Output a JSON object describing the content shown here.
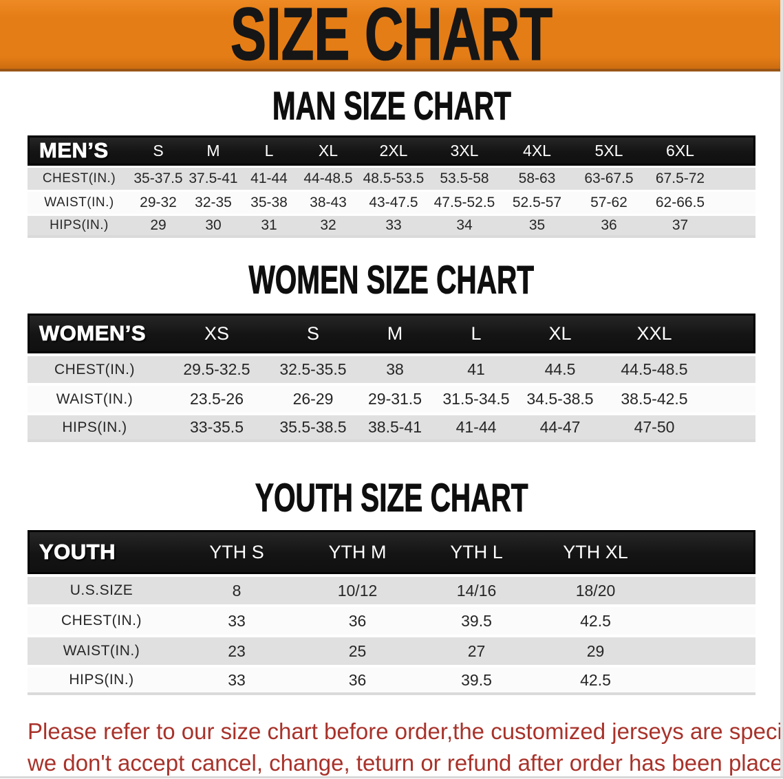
{
  "banner": {
    "title": "SIZE CHART"
  },
  "theme": {
    "banner_bg": "#E57D16",
    "banner_text": "#161616",
    "bar_bg": "#161616",
    "bar_text": "#FFFFFF",
    "row_gray": "#E0E0E0",
    "row_white": "#FBFBFB",
    "value_text": "#262626",
    "footer_red": "#A8322A"
  },
  "sections": {
    "men": {
      "heading": "MAN SIZE CHART",
      "group_label": "MEN’S",
      "sizes": [
        "S",
        "M",
        "L",
        "XL",
        "2XL",
        "3XL",
        "4XL",
        "5XL",
        "6XL"
      ],
      "rows": [
        {
          "label": "CHEST(IN.)",
          "values": [
            "35-37.5",
            "37.5-41",
            "41-44",
            "44-48.5",
            "48.5-53.5",
            "53.5-58",
            "58-63",
            "63-67.5",
            "67.5-72"
          ]
        },
        {
          "label": "WAIST(IN.)",
          "values": [
            "29-32",
            "32-35",
            "35-38",
            "38-43",
            "43-47.5",
            "47.5-52.5",
            "52.5-57",
            "57-62",
            "62-66.5"
          ]
        },
        {
          "label": "HIPS(IN.)",
          "values": [
            "29",
            "30",
            "31",
            "32",
            "33",
            "34",
            "35",
            "36",
            "37"
          ]
        }
      ]
    },
    "women": {
      "heading": "WOMEN SIZE CHART",
      "group_label": "WOMEN’S",
      "sizes": [
        "XS",
        "S",
        "M",
        "L",
        "XL",
        "XXL"
      ],
      "rows": [
        {
          "label": "CHEST(IN.)",
          "values": [
            "29.5-32.5",
            "32.5-35.5",
            "38",
            "41",
            "44.5",
            "44.5-48.5"
          ]
        },
        {
          "label": "WAIST(IN.)",
          "values": [
            "23.5-26",
            "26-29",
            "29-31.5",
            "31.5-34.5",
            "34.5-38.5",
            "38.5-42.5"
          ]
        },
        {
          "label": "HIPS(IN.)",
          "values": [
            "33-35.5",
            "35.5-38.5",
            "38.5-41",
            "41-44",
            "44-47",
            "47-50"
          ]
        }
      ]
    },
    "youth": {
      "heading": "YOUTH SIZE CHART",
      "group_label": "YOUTH",
      "sizes": [
        "YTH S",
        "YTH M",
        "YTH L",
        "YTH XL"
      ],
      "rows": [
        {
          "label": "U.S.SIZE",
          "values": [
            "8",
            "10/12",
            "14/16",
            "18/20"
          ]
        },
        {
          "label": "CHEST(IN.)",
          "values": [
            "33",
            "36",
            "39.5",
            "42.5"
          ]
        },
        {
          "label": "WAIST(IN.)",
          "values": [
            "23",
            "25",
            "27",
            "29"
          ]
        },
        {
          "label": "HIPS(IN.)",
          "values": [
            "33",
            "36",
            "39.5",
            "42.5"
          ]
        }
      ]
    }
  },
  "footer": {
    "line1": "Please refer to our size chart before order,the customized jerseys are special products,",
    "line2": "we don't accept cancel, change, teturn or refund after order has been placed!"
  }
}
